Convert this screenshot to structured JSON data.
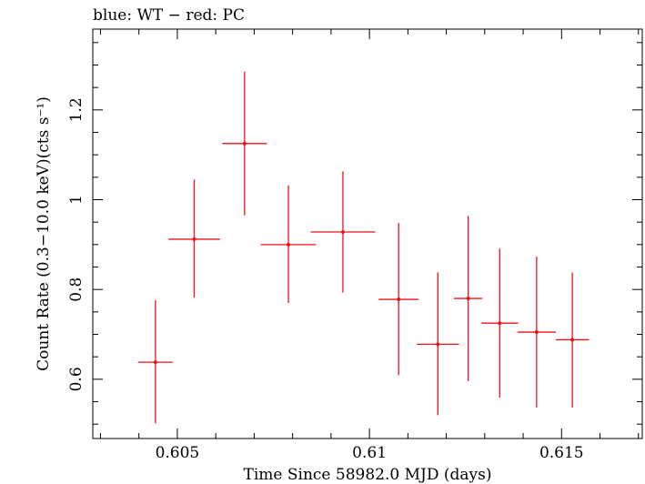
{
  "chart_data": {
    "type": "scatter",
    "title": "blue: WT − red: PC",
    "xlabel": "Time Since 58982.0 MJD (days)",
    "ylabel": "Count Rate (0.3−10.0 keV)(cts s⁻¹)",
    "xlim": [
      0.6028,
      0.6171
    ],
    "ylim": [
      0.468,
      1.38
    ],
    "x_ticks": [
      0.605,
      0.61,
      0.615
    ],
    "x_tick_labels": [
      "0.605",
      "0.61",
      "0.615"
    ],
    "y_ticks": [
      0.6,
      0.8,
      1.0,
      1.2
    ],
    "y_tick_labels": [
      "0.6",
      "0.8",
      "1",
      "1.2"
    ],
    "series": [
      {
        "name": "PC",
        "color": "#e8141c",
        "points": [
          {
            "x": 0.60443,
            "y": 0.638,
            "xerr": 0.00045,
            "ylo": 0.502,
            "yhi": 0.776
          },
          {
            "x": 0.60544,
            "y": 0.912,
            "xerr": 0.00067,
            "ylo": 0.782,
            "yhi": 1.045
          },
          {
            "x": 0.60675,
            "y": 1.125,
            "xerr": 0.00058,
            "ylo": 0.965,
            "yhi": 1.285
          },
          {
            "x": 0.60789,
            "y": 0.9,
            "xerr": 0.00072,
            "ylo": 0.77,
            "yhi": 1.032
          },
          {
            "x": 0.60931,
            "y": 0.928,
            "xerr": 0.00084,
            "ylo": 0.793,
            "yhi": 1.063
          },
          {
            "x": 0.61076,
            "y": 0.778,
            "xerr": 0.00052,
            "ylo": 0.609,
            "yhi": 0.948
          },
          {
            "x": 0.61178,
            "y": 0.678,
            "xerr": 0.00055,
            "ylo": 0.52,
            "yhi": 0.838
          },
          {
            "x": 0.61257,
            "y": 0.78,
            "xerr": 0.00037,
            "ylo": 0.596,
            "yhi": 0.964
          },
          {
            "x": 0.61339,
            "y": 0.725,
            "xerr": 0.00048,
            "ylo": 0.559,
            "yhi": 0.891
          },
          {
            "x": 0.61435,
            "y": 0.705,
            "xerr": 0.0005,
            "ylo": 0.537,
            "yhi": 0.873
          },
          {
            "x": 0.61528,
            "y": 0.688,
            "xerr": 0.00043,
            "ylo": 0.537,
            "yhi": 0.838
          }
        ]
      }
    ]
  }
}
